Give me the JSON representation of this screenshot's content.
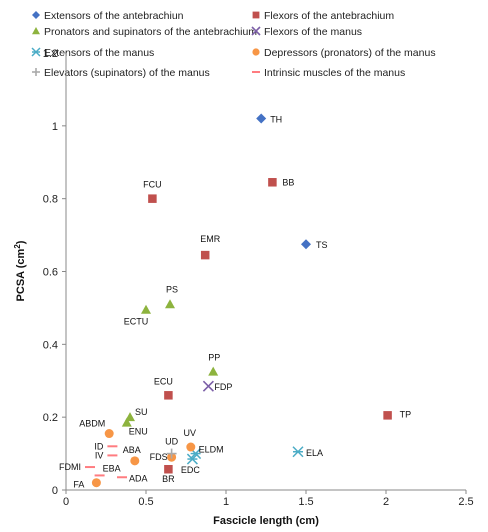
{
  "chart_data": {
    "type": "scatter",
    "xlabel": "Fascicle length (cm)",
    "ylabel_main": "PCSA (cm",
    "ylabel_sup": "2",
    "ylabel_end": ")",
    "xlim": [
      0,
      2.5
    ],
    "ylim": [
      0,
      1.2
    ],
    "x_ticks": [
      "0",
      "0.5",
      "1",
      "1.5",
      "2",
      "2.5"
    ],
    "y_ticks": [
      "0",
      "0.2",
      "0.4",
      "0.6",
      "0.8",
      "1",
      "1.2"
    ],
    "grid": false,
    "legend_position": "top",
    "series": [
      {
        "name": "Extensors of the antebrachiun",
        "marker": "diamond",
        "color": "#4472c4",
        "points": [
          {
            "label": "TH",
            "x": 1.22,
            "y": 1.02
          },
          {
            "label": "TS",
            "x": 1.5,
            "y": 0.675
          }
        ]
      },
      {
        "name": "Flexors of the antebrachium",
        "marker": "square",
        "color": "#c0504d",
        "points": [
          {
            "label": "FCU",
            "x": 0.54,
            "y": 0.8
          },
          {
            "label": "BB",
            "x": 1.29,
            "y": 0.845
          },
          {
            "label": "EMR",
            "x": 0.87,
            "y": 0.645
          },
          {
            "label": "ECU",
            "x": 0.64,
            "y": 0.26
          },
          {
            "label": "TP",
            "x": 2.01,
            "y": 0.205
          },
          {
            "label": "BR",
            "x": 0.64,
            "y": 0.057
          }
        ]
      },
      {
        "name": "Pronators and supinators of the antebrachium",
        "marker": "triangle",
        "color": "#8db33e",
        "points": [
          {
            "label": "ECTU",
            "x": 0.5,
            "y": 0.495
          },
          {
            "label": "PS",
            "x": 0.65,
            "y": 0.51
          },
          {
            "label": "PP",
            "x": 0.92,
            "y": 0.325
          },
          {
            "label": "SU",
            "x": 0.4,
            "y": 0.2
          },
          {
            "label": "ENU",
            "x": 0.38,
            "y": 0.185
          }
        ]
      },
      {
        "name": "Flexors of the manus",
        "marker": "x",
        "color": "#7b5ea7",
        "points": [
          {
            "label": "FDP",
            "x": 0.89,
            "y": 0.285
          }
        ]
      },
      {
        "name": "Extensors of the manus",
        "marker": "asterisk",
        "color": "#4bacc6",
        "points": [
          {
            "label": "ELA",
            "x": 1.45,
            "y": 0.105
          },
          {
            "label": "ELDM",
            "x": 0.81,
            "y": 0.1
          },
          {
            "label": "EDC",
            "x": 0.79,
            "y": 0.085
          }
        ]
      },
      {
        "name": "Depressors (pronators) of the manus",
        "marker": "circle",
        "color": "#f79646",
        "points": [
          {
            "label": "ABDM",
            "x": 0.27,
            "y": 0.155
          },
          {
            "label": "UV",
            "x": 0.78,
            "y": 0.118
          },
          {
            "label": "FDS",
            "x": 0.66,
            "y": 0.09
          },
          {
            "label": "ABA",
            "x": 0.43,
            "y": 0.08
          },
          {
            "label": "FA",
            "x": 0.19,
            "y": 0.02
          }
        ]
      },
      {
        "name": "Elevators (supinators) of the manus",
        "marker": "plus",
        "color": "#aaaaaa",
        "points": [
          {
            "label": "UD",
            "x": 0.66,
            "y": 0.1
          }
        ]
      },
      {
        "name": "Intrinsic muscles of the manus",
        "marker": "dash",
        "color": "#ff7c80",
        "points": [
          {
            "label": "ID",
            "x": 0.29,
            "y": 0.12
          },
          {
            "label": "IV",
            "x": 0.29,
            "y": 0.095
          },
          {
            "label": "FDMI",
            "x": 0.15,
            "y": 0.063
          },
          {
            "label": "EBA",
            "x": 0.21,
            "y": 0.04
          },
          {
            "label": "ADA",
            "x": 0.35,
            "y": 0.035
          }
        ]
      }
    ]
  }
}
